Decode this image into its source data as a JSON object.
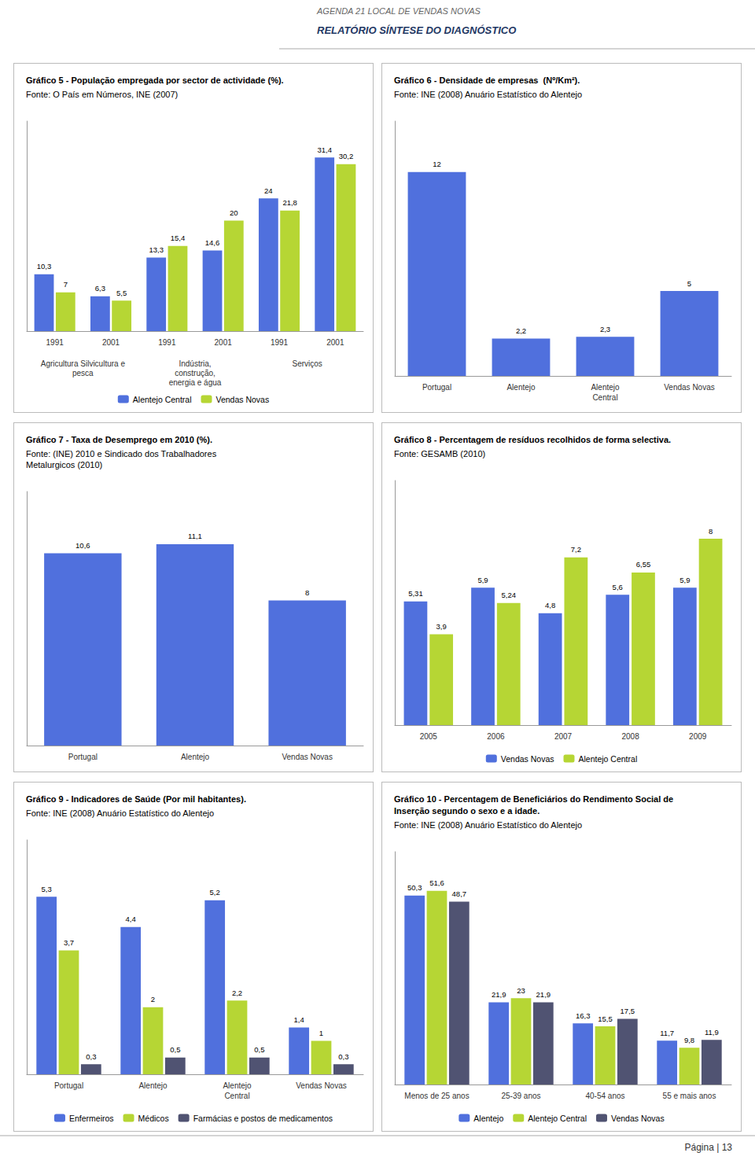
{
  "title": "AGENDA 21 LOCAL DE VENDAS NOVAS",
  "subtitle": "RELATÓRIO SÍNTESE DO DIAGNÓSTICO",
  "annotations": [
    "Página | 13"
  ],
  "chart_data": [
    {
      "type": "bar",
      "title": "Gráfico 5 - População empregada por sector de actividade (%).",
      "subtitle": "Fonte: O País em Números, INE (2007)",
      "categories": [
        "1991",
        "2001",
        "1991",
        "2001",
        "1991",
        "2001"
      ],
      "annotations": [
        "Agricultura Silvicultura e\npesca",
        "Indústria,\nconstrução,\nenergia e água",
        "Serviços"
      ],
      "series": [
        {
          "name": "Alentejo Central",
          "values": [
            10.3,
            6.3,
            13.3,
            14.6,
            24.0,
            31.4
          ],
          "value_labels": [
            "10,3",
            "6,3",
            "13,3",
            "14,6",
            "24",
            "31,4"
          ]
        },
        {
          "name": "Vendas Novas",
          "values": [
            7.0,
            5.5,
            15.4,
            20.0,
            21.8,
            30.2
          ],
          "value_labels": [
            "7",
            "5,5",
            "15,4",
            "20",
            "21,8",
            "30,2"
          ]
        }
      ],
      "ylim": [
        0,
        38
      ],
      "grid": false,
      "legend": "bottom",
      "data_labels": true,
      "tick_labels": "x"
    },
    {
      "type": "bar",
      "title": "Gráfico 6 - Densidade de empresas  (Nº/Km²).",
      "subtitle": "Fonte: INE (2008) Anuário Estatístico do Alentejo",
      "categories": [
        "Portugal",
        "Alentejo",
        "Alentejo\nCentral",
        "Vendas Novas"
      ],
      "values": [
        12.0,
        2.2,
        2.3,
        5.0
      ],
      "value_labels": [
        "12",
        "2,2",
        "2,3",
        "5"
      ],
      "ylim": [
        0,
        15
      ],
      "grid": false,
      "data_labels": true,
      "tick_labels": "x"
    },
    {
      "type": "bar",
      "title": "Gráfico 7 - Taxa de Desemprego em 2010 (%).",
      "subtitle": "Fonte: (INE) 2010 e Sindicado dos Trabalhadores\nMetalurgicos (2010)",
      "categories": [
        "Portugal",
        "Alentejo",
        "Vendas Novas"
      ],
      "values": [
        10.6,
        11.1,
        8
      ],
      "value_labels": [
        "10,6",
        "11,1",
        "8"
      ],
      "ylim": [
        0,
        14
      ],
      "grid": false,
      "data_labels": true,
      "tick_labels": "x"
    },
    {
      "type": "bar",
      "title": "Gráfico 8 - Percentagem de resíduos recolhidos de forma selectiva.",
      "subtitle": "Fonte: GESAMB (2010)",
      "categories": [
        "2005",
        "2006",
        "2007",
        "2008",
        "2009"
      ],
      "series": [
        {
          "name": "Vendas Novas",
          "values": [
            5.31,
            5.9,
            4.8,
            5.6,
            5.9
          ],
          "value_labels": [
            "5,31",
            "5,9",
            "4,8",
            "5,6",
            "5,9"
          ]
        },
        {
          "name": "Alentejo Central",
          "values": [
            3.9,
            5.24,
            7.2,
            6.55,
            8.0
          ],
          "value_labels": [
            "3,9",
            "5,24",
            "7,2",
            "6,55",
            "8"
          ]
        }
      ],
      "ylim": [
        0,
        10.5
      ],
      "grid": false,
      "legend": "bottom",
      "data_labels": true,
      "tick_labels": "x"
    },
    {
      "type": "bar",
      "title": "Gráfico 9 - Indicadores de Saúde (Por mil habitantes).",
      "subtitle": "Fonte: INE (2008) Anuário Estatístico do Alentejo",
      "categories": [
        "Portugal",
        "Alentejo",
        "Alentejo\nCentral",
        "Vendas Novas"
      ],
      "series": [
        {
          "name": "Enfermeiros",
          "values": [
            5.3,
            4.4,
            5.2,
            1.4
          ],
          "value_labels": [
            "5,3",
            "4,4",
            "5,2",
            "1,4"
          ]
        },
        {
          "name": "Médicos",
          "values": [
            3.7,
            2.0,
            2.2,
            1.0
          ],
          "value_labels": [
            "3,7",
            "2",
            "2,2",
            "1"
          ]
        },
        {
          "name": "Farmácias e postos de medicamentos",
          "values": [
            0.3,
            0.5,
            0.5,
            0.3
          ],
          "value_labels": [
            "0,3",
            "0,5",
            "0,5",
            "0,3"
          ]
        }
      ],
      "ylim": [
        0,
        7
      ],
      "grid": false,
      "legend": "bottom",
      "data_labels": true,
      "tick_labels": "x"
    },
    {
      "type": "bar",
      "title": "Gráfico 10 - Percentagem de Beneficiários do Rendimento Social de\nInserção segundo o sexo e a idade.",
      "subtitle": "Fonte: INE (2008) Anuário Estatístico do Alentejo",
      "categories": [
        "Menos de 25 anos",
        "25-39 anos",
        "40-54 anos",
        "55 e mais anos"
      ],
      "series": [
        {
          "name": "Alentejo",
          "values": [
            50.3,
            21.9,
            16.3,
            11.7
          ],
          "value_labels": [
            "50,3",
            "21,9",
            "16,3",
            "11,7"
          ]
        },
        {
          "name": "Alentejo Central",
          "values": [
            51.6,
            23.0,
            15.5,
            9.8
          ],
          "value_labels": [
            "51,6",
            "23",
            "15,5",
            "9,8"
          ]
        },
        {
          "name": "Vendas Novas",
          "values": [
            48.7,
            21.9,
            17.5,
            11.9
          ],
          "value_labels": [
            "48,7",
            "21,9",
            "17,5",
            "11,9"
          ]
        }
      ],
      "ylim": [
        0,
        62
      ],
      "grid": false,
      "legend": "bottom",
      "data_labels": true,
      "tick_labels": "x"
    }
  ]
}
